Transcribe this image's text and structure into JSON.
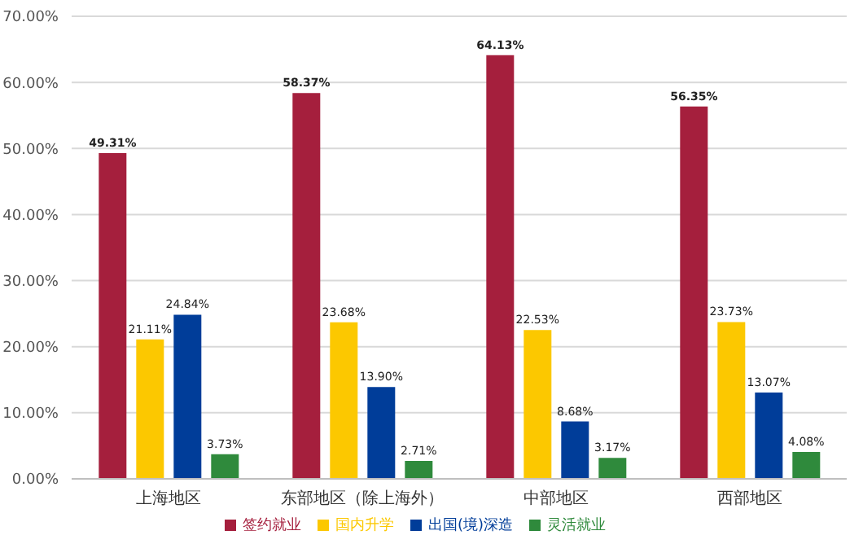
{
  "chart_data": {
    "type": "bar",
    "categories": [
      "上海地区",
      "东部地区（除上海外）",
      "中部地区",
      "西部地区"
    ],
    "series": [
      {
        "name": "签约就业",
        "color": "#a51f3d",
        "values": [
          49.31,
          58.37,
          64.13,
          56.35
        ],
        "value_labels": [
          "49.31%",
          "58.37%",
          "64.13%",
          "56.35%"
        ]
      },
      {
        "name": "国内升学",
        "color": "#fcc800",
        "values": [
          21.11,
          23.68,
          22.53,
          23.73
        ],
        "value_labels": [
          "21.11%",
          "23.68%",
          "22.53%",
          "23.73%"
        ]
      },
      {
        "name": "出国(境)深造",
        "color": "#003d99",
        "values": [
          24.84,
          13.9,
          8.68,
          13.07
        ],
        "value_labels": [
          "24.84%",
          "13.90%",
          "8.68%",
          "13.07%"
        ]
      },
      {
        "name": "灵活就业",
        "color": "#2f8a3c",
        "values": [
          3.73,
          2.71,
          3.17,
          4.08
        ],
        "value_labels": [
          "3.73%",
          "2.71%",
          "3.17%",
          "4.08%"
        ]
      }
    ],
    "ylim": [
      0,
      70
    ],
    "yticks": [
      {
        "value": 0,
        "label": "0.00%"
      },
      {
        "value": 10,
        "label": "10.00%"
      },
      {
        "value": 20,
        "label": "20.00%"
      },
      {
        "value": 30,
        "label": "30.00%"
      },
      {
        "value": 40,
        "label": "40.00%"
      },
      {
        "value": 50,
        "label": "50.00%"
      },
      {
        "value": 60,
        "label": "60.00%"
      },
      {
        "value": 70,
        "label": "70.00%"
      }
    ],
    "grid": "y",
    "legend": "bottom"
  }
}
